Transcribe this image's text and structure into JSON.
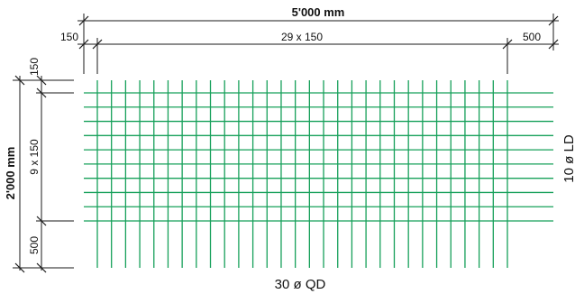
{
  "colors": {
    "bar": "#16a05a",
    "dimension": "#1a1a1a"
  },
  "mesh": {
    "total_length_label": "5'000 mm",
    "total_width_label": "2'000 mm",
    "left_offset_label": "150",
    "cross_spacing_label": "29 x 150",
    "right_overhang_label": "500",
    "top_offset_label": "150",
    "longitudinal_spacing_label": "9 x 150",
    "bottom_overhang_label": "500",
    "cross_bars_label": "30 ø QD",
    "longitudinal_bars_label": "10 ø LD",
    "cross_bar_count": 30,
    "longitudinal_bar_count": 10
  }
}
